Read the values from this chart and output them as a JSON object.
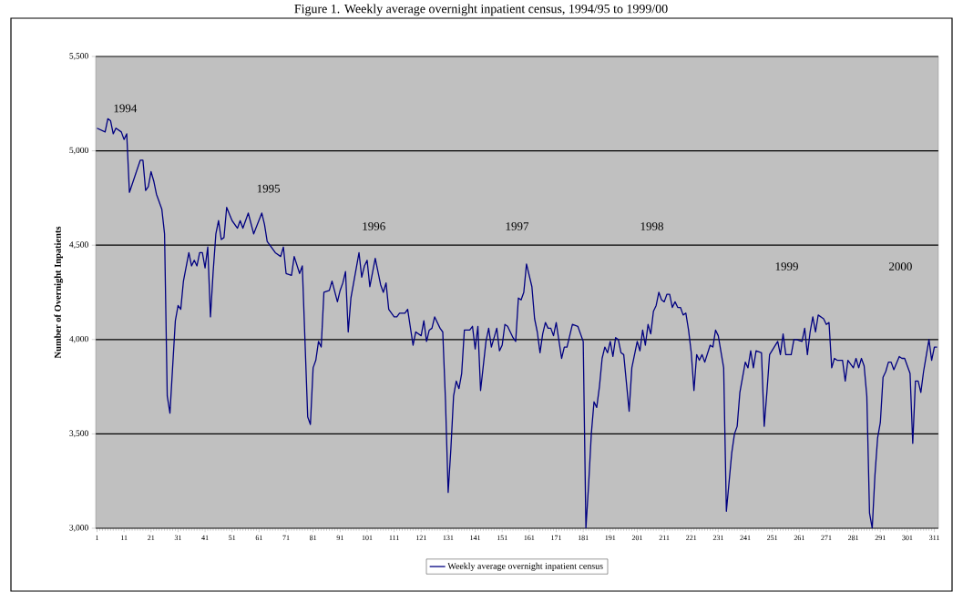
{
  "chart_data": {
    "type": "line",
    "title": "Figure 1.   Weekly average overnight inpatient census, 1994/95 to 1999/00",
    "ylabel": "Number of Overnight Inpatients",
    "x": [
      1,
      4,
      5,
      6,
      7,
      8,
      10,
      11,
      12,
      13,
      17,
      18,
      19,
      20,
      21,
      22,
      23,
      25,
      26,
      27,
      28,
      30,
      31,
      32,
      33,
      35,
      36,
      37,
      38,
      39,
      40,
      41,
      42,
      43,
      44,
      45,
      46,
      47,
      48,
      49,
      51,
      53,
      54,
      55,
      57,
      59,
      62,
      63,
      64,
      65,
      67,
      69,
      70,
      71,
      73,
      74,
      76,
      77,
      79,
      80,
      81,
      82,
      83,
      84,
      85,
      87,
      88,
      90,
      91,
      92,
      93,
      94,
      95,
      96,
      98,
      99,
      100,
      101,
      102,
      104,
      106,
      107,
      108,
      109,
      111,
      112,
      113,
      115,
      116,
      118,
      119,
      121,
      122,
      123,
      124,
      125,
      126,
      128,
      129,
      130,
      131,
      132,
      133,
      134,
      135,
      136,
      137,
      139,
      140,
      141,
      142,
      143,
      145,
      146,
      147,
      149,
      150,
      151,
      152,
      153,
      154,
      155,
      156,
      157,
      158,
      159,
      160,
      162,
      163,
      164,
      165,
      166,
      167,
      168,
      169,
      170,
      171,
      173,
      174,
      175,
      177,
      179,
      180,
      181,
      182,
      183,
      184,
      185,
      186,
      187,
      188,
      189,
      190,
      191,
      192,
      193,
      194,
      195,
      196,
      198,
      199,
      200,
      201,
      202,
      203,
      204,
      205,
      206,
      207,
      208,
      209,
      210,
      211,
      212,
      213,
      214,
      215,
      216,
      217,
      218,
      219,
      220,
      221,
      222,
      223,
      224,
      225,
      226,
      228,
      229,
      230,
      231,
      233,
      234,
      236,
      237,
      238,
      239,
      241,
      242,
      243,
      244,
      245,
      247,
      248,
      249,
      250,
      253,
      254,
      255,
      256,
      258,
      259,
      260,
      262,
      263,
      264,
      265,
      266,
      267,
      268,
      270,
      271,
      272,
      273,
      274,
      275,
      277,
      278,
      279,
      281,
      282,
      283,
      284,
      285,
      286,
      287,
      288,
      289,
      290,
      291,
      292,
      293,
      294,
      295,
      296,
      298,
      299,
      300,
      302,
      303,
      304,
      305,
      306,
      307,
      309,
      310,
      311,
      312
    ],
    "series": [
      {
        "name": "Weekly average overnight inpatient census",
        "color": "#000080",
        "values": [
          5120,
          5100,
          5170,
          5160,
          5090,
          5120,
          5100,
          5060,
          5090,
          4780,
          4950,
          4950,
          4790,
          4810,
          4890,
          4840,
          4770,
          4690,
          4560,
          3700,
          3610,
          4100,
          4180,
          4160,
          4310,
          4460,
          4390,
          4420,
          4390,
          4460,
          4460,
          4380,
          4490,
          4120,
          4360,
          4560,
          4630,
          4530,
          4540,
          4700,
          4630,
          4590,
          4630,
          4590,
          4670,
          4560,
          4670,
          4610,
          4520,
          4500,
          4460,
          4440,
          4490,
          4350,
          4340,
          4440,
          4350,
          4390,
          3590,
          3550,
          3850,
          3890,
          3990,
          3960,
          4250,
          4260,
          4310,
          4200,
          4260,
          4300,
          4360,
          4040,
          4220,
          4300,
          4460,
          4330,
          4390,
          4420,
          4280,
          4430,
          4290,
          4250,
          4300,
          4160,
          4120,
          4120,
          4140,
          4140,
          4160,
          3970,
          4040,
          4020,
          4100,
          3990,
          4050,
          4060,
          4120,
          4060,
          4040,
          3680,
          3190,
          3420,
          3700,
          3780,
          3740,
          3820,
          4050,
          4050,
          4070,
          3950,
          4070,
          3730,
          3990,
          4060,
          3960,
          4060,
          3940,
          3970,
          4080,
          4070,
          4040,
          4010,
          3990,
          4220,
          4210,
          4250,
          4400,
          4280,
          4110,
          4040,
          3930,
          4030,
          4090,
          4060,
          4060,
          4020,
          4090,
          3900,
          3960,
          3960,
          4080,
          4070,
          4030,
          3990,
          3000,
          3230,
          3500,
          3670,
          3640,
          3750,
          3900,
          3960,
          3930,
          3990,
          3910,
          4010,
          4000,
          3930,
          3920,
          3620,
          3850,
          3920,
          3990,
          3940,
          4050,
          3970,
          4080,
          4030,
          4150,
          4180,
          4250,
          4210,
          4200,
          4240,
          4240,
          4170,
          4200,
          4170,
          4170,
          4130,
          4140,
          4050,
          3930,
          3730,
          3920,
          3890,
          3920,
          3880,
          3970,
          3960,
          4050,
          4020,
          3850,
          3090,
          3400,
          3500,
          3540,
          3720,
          3880,
          3850,
          3940,
          3850,
          3940,
          3930,
          3540,
          3720,
          3920,
          3990,
          3920,
          4030,
          3920,
          3920,
          4000,
          4000,
          3990,
          4060,
          3920,
          4040,
          4120,
          4040,
          4130,
          4110,
          4080,
          4090,
          3850,
          3900,
          3890,
          3890,
          3780,
          3890,
          3850,
          3900,
          3850,
          3900,
          3860,
          3700,
          3080,
          3000,
          3280,
          3480,
          3560,
          3800,
          3830,
          3880,
          3880,
          3840,
          3910,
          3900,
          3900,
          3820,
          3450,
          3780,
          3780,
          3720,
          3830,
          4000,
          3890,
          3960,
          3960
        ]
      }
    ],
    "xlim": [
      0.5,
      312.5
    ],
    "xticks": [
      1,
      11,
      21,
      31,
      41,
      51,
      61,
      71,
      81,
      91,
      101,
      111,
      121,
      131,
      141,
      151,
      161,
      171,
      181,
      191,
      201,
      211,
      221,
      231,
      241,
      251,
      261,
      271,
      281,
      291,
      301,
      311
    ],
    "ylim": [
      3000,
      5500
    ],
    "yticks": [
      {
        "value": 3000,
        "label": "3,000"
      },
      {
        "value": 3500,
        "label": "3,500"
      },
      {
        "value": 4000,
        "label": "4,000"
      },
      {
        "value": 4500,
        "label": "4,500"
      },
      {
        "value": 5000,
        "label": "5,000"
      },
      {
        "value": 5500,
        "label": "5,500"
      }
    ],
    "grid": "y",
    "legend": "bottom",
    "marker": "none",
    "line_style": "solid",
    "annotations": [
      "1994",
      "1995",
      "1996",
      "1997",
      "1998",
      "1999",
      "2000"
    ]
  }
}
